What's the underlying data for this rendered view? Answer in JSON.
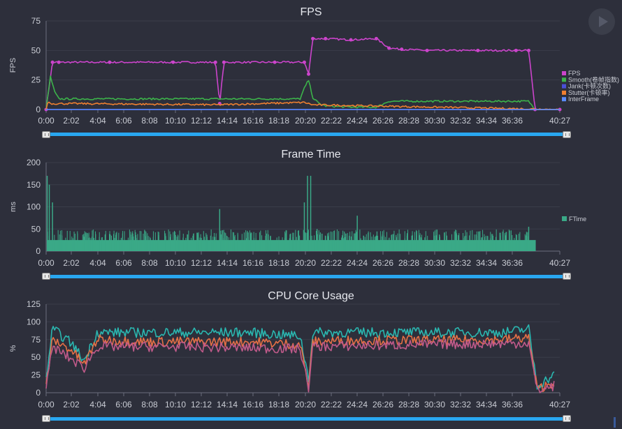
{
  "play_button": {
    "icon": "play-icon"
  },
  "chart_data": [
    {
      "type": "line",
      "title": "FPS",
      "ylabel": "FPS",
      "xlabel": "",
      "ylim": [
        0,
        75
      ],
      "yticks": [
        0,
        25,
        50,
        75
      ],
      "xlim": [
        "0:00",
        "40:27"
      ],
      "x_ticks": [
        "0:00",
        "2:02",
        "4:04",
        "6:06",
        "8:08",
        "10:10",
        "12:12",
        "14:14",
        "16:16",
        "18:18",
        "20:20",
        "22:22",
        "24:24",
        "26:26",
        "28:28",
        "30:30",
        "32:32",
        "34:34",
        "36:36",
        "40:27"
      ],
      "legend_position": "right",
      "series": [
        {
          "name": "FPS",
          "color": "#cc44cc",
          "x": [
            "0:00",
            "0:30",
            "1:00",
            "5:00",
            "10:00",
            "13:20",
            "13:40",
            "14:00",
            "18:00",
            "20:20",
            "20:40",
            "21:00",
            "22:00",
            "24:00",
            "26:00",
            "27:00",
            "28:00",
            "30:00",
            "34:00",
            "37:00",
            "38:00",
            "38:30",
            "40:27"
          ],
          "values": [
            0,
            40,
            40,
            40,
            40,
            40,
            5,
            40,
            40,
            40,
            30,
            60,
            60,
            59,
            60,
            52,
            51,
            50,
            50,
            50,
            50,
            0,
            0
          ]
        },
        {
          "name": "Smooth(卷帧指数)",
          "color": "#3cb34a",
          "x": [
            "0:00",
            "0:20",
            "0:40",
            "1:00",
            "5:00",
            "10:00",
            "15:00",
            "20:00",
            "20:20",
            "20:40",
            "21:00",
            "21:30",
            "22:00",
            "24:00",
            "26:00",
            "27:00",
            "30:00",
            "35:00",
            "38:00",
            "38:30",
            "40:27"
          ],
          "values": [
            0,
            28,
            15,
            9,
            9,
            9,
            9,
            9,
            18,
            25,
            10,
            5,
            3,
            2,
            2,
            7,
            7,
            7,
            7,
            0,
            0
          ]
        },
        {
          "name": "Jank(卡顿次数)",
          "color": "#4a4fd8",
          "x": [
            "0:00",
            "40:27"
          ],
          "values": [
            0,
            0
          ]
        },
        {
          "name": "Stutter(卡顿率)",
          "color": "#f08030",
          "x": [
            "0:00",
            "0:10",
            "0:20",
            "2:30",
            "13:30",
            "20:20",
            "21:00",
            "40:27"
          ],
          "values": [
            0,
            8,
            5,
            5,
            4,
            6,
            4,
            0
          ]
        },
        {
          "name": "InterFrame",
          "color": "#5a8cff",
          "x": [
            "0:00",
            "40:27"
          ],
          "values": [
            0,
            0
          ]
        }
      ]
    },
    {
      "type": "bar",
      "title": "Frame Time",
      "ylabel": "ms",
      "ylim": [
        0,
        200
      ],
      "yticks": [
        0,
        50,
        100,
        150,
        200
      ],
      "xlim": [
        "0:00",
        "40:27"
      ],
      "x_ticks": [
        "0:00",
        "2:02",
        "4:04",
        "6:06",
        "8:08",
        "10:10",
        "12:12",
        "14:14",
        "16:16",
        "18:18",
        "20:20",
        "22:22",
        "24:24",
        "26:26",
        "28:28",
        "30:30",
        "32:32",
        "34:34",
        "36:36",
        "40:27"
      ],
      "legend_position": "right",
      "series": [
        {
          "name": "FTime",
          "color": "#3aa987",
          "baseline": 25,
          "spikes_x": [
            "0:05",
            "0:15",
            "0:30",
            "13:40",
            "20:20",
            "20:35",
            "20:50",
            "21:20",
            "24:30",
            "25:00",
            "26:00",
            "38:00"
          ],
          "spikes_values": [
            170,
            150,
            110,
            95,
            110,
            170,
            170,
            50,
            80,
            35,
            35,
            55
          ]
        }
      ]
    },
    {
      "type": "line",
      "title": "CPU Core Usage",
      "ylabel": "%",
      "ylim": [
        0,
        125
      ],
      "yticks": [
        0,
        25,
        50,
        75,
        100,
        125
      ],
      "xlim": [
        "0:00",
        "40:27"
      ],
      "x_ticks": [
        "0:00",
        "2:02",
        "4:04",
        "6:06",
        "8:08",
        "10:10",
        "12:12",
        "14:14",
        "16:16",
        "18:18",
        "20:20",
        "22:22",
        "24:24",
        "26:26",
        "28:28",
        "30:30",
        "32:32",
        "34:34",
        "36:36",
        "40:27"
      ],
      "series": [
        {
          "name": "",
          "color": "#2ab7b0",
          "x": [
            "0:00",
            "0:30",
            "2:00",
            "3:00",
            "4:00",
            "8:00",
            "12:00",
            "16:00",
            "20:00",
            "20:40",
            "21:00",
            "24:00",
            "28:00",
            "32:00",
            "36:00",
            "38:00",
            "38:40",
            "40:00"
          ],
          "values": [
            20,
            90,
            70,
            45,
            85,
            85,
            85,
            85,
            80,
            20,
            85,
            85,
            85,
            85,
            85,
            90,
            10,
            25
          ]
        },
        {
          "name": "",
          "color": "#e67046",
          "x": [
            "0:00",
            "0:30",
            "2:00",
            "3:00",
            "4:00",
            "8:00",
            "12:00",
            "16:00",
            "20:00",
            "20:40",
            "21:00",
            "24:00",
            "28:00",
            "32:00",
            "36:00",
            "38:00",
            "38:40",
            "40:00"
          ],
          "values": [
            10,
            75,
            60,
            40,
            75,
            72,
            72,
            72,
            68,
            10,
            72,
            74,
            74,
            74,
            75,
            78,
            5,
            15
          ]
        },
        {
          "name": "",
          "color": "#c05a8a",
          "x": [
            "0:00",
            "0:30",
            "3:00",
            "4:00",
            "10:00",
            "20:00",
            "20:40",
            "21:00",
            "30:00",
            "38:00",
            "38:40",
            "40:00"
          ],
          "values": [
            5,
            65,
            35,
            65,
            65,
            62,
            8,
            65,
            68,
            70,
            3,
            10
          ]
        }
      ]
    }
  ]
}
